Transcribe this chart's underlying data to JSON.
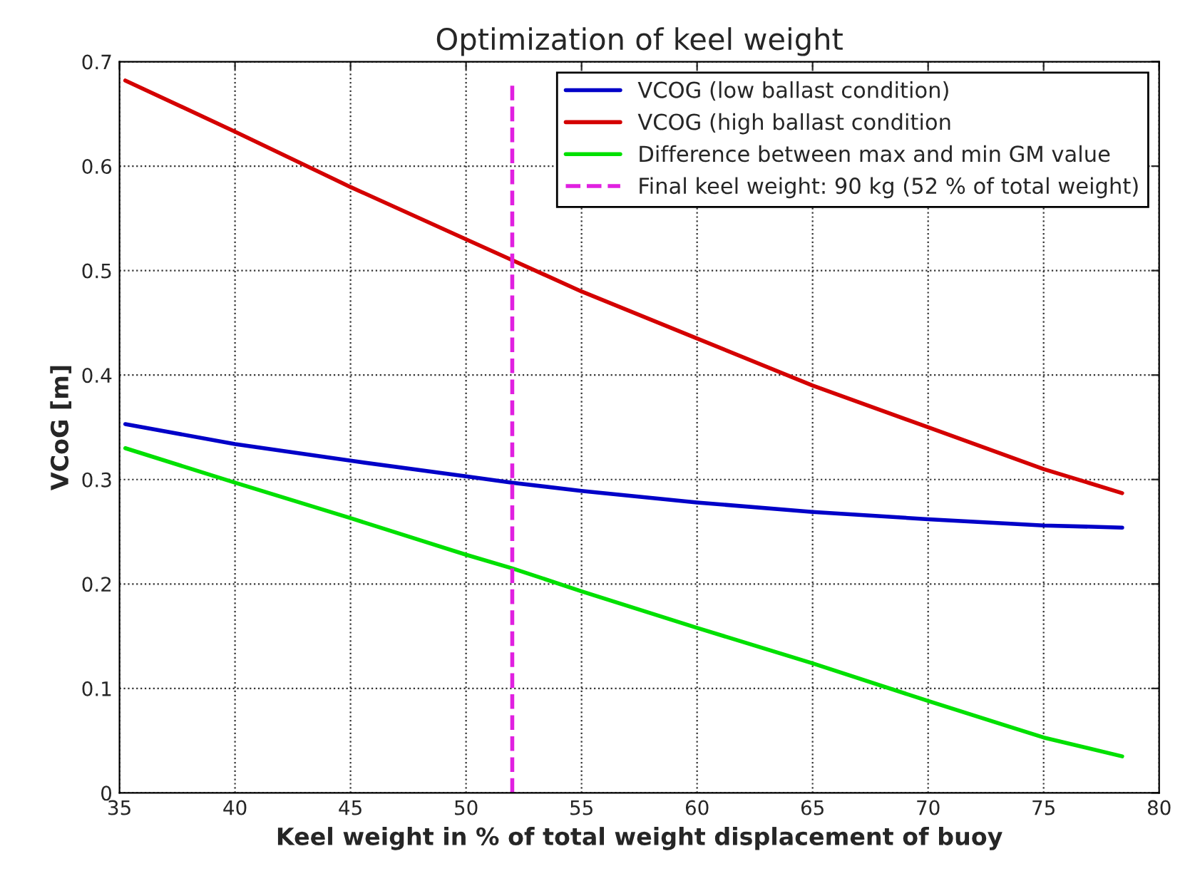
{
  "chart_data": {
    "type": "line",
    "title": "Optimization of keel weight",
    "xlabel": "Keel weight in % of total weight displacement of buoy",
    "ylabel": "VCoG [m]",
    "xlim": [
      35,
      80
    ],
    "xticks": [
      35,
      40,
      45,
      50,
      55,
      60,
      65,
      70,
      75,
      80
    ],
    "ylim": [
      0,
      0.7
    ],
    "yticks": [
      0,
      0.1,
      0.2,
      0.3,
      0.4,
      0.5,
      0.6,
      0.7
    ],
    "grid": true,
    "legend": "top right",
    "marker": "none",
    "series": [
      {
        "name": "VCOG (low ballast condition)",
        "color": "#0000c8",
        "line_style": "solid",
        "x": [
          35.25,
          40,
          45,
          50,
          52,
          55,
          60,
          65,
          70,
          75,
          78.4
        ],
        "values": [
          0.353,
          0.334,
          0.318,
          0.303,
          0.297,
          0.289,
          0.278,
          0.269,
          0.262,
          0.256,
          0.254
        ]
      },
      {
        "name": "VCOG (high ballast condition",
        "color": "#d40000",
        "line_style": "solid",
        "x": [
          35.25,
          40,
          45,
          50,
          52,
          55,
          60,
          65,
          70,
          75,
          78.4
        ],
        "values": [
          0.682,
          0.633,
          0.58,
          0.53,
          0.51,
          0.48,
          0.435,
          0.39,
          0.35,
          0.31,
          0.287
        ]
      },
      {
        "name": "Difference between max and min GM value",
        "color": "#00e000",
        "line_style": "solid",
        "x": [
          35.25,
          40,
          45,
          50,
          52,
          55,
          60,
          65,
          70,
          75,
          78.4
        ],
        "values": [
          0.33,
          0.297,
          0.263,
          0.228,
          0.215,
          0.193,
          0.158,
          0.124,
          0.088,
          0.053,
          0.035
        ]
      },
      {
        "name": "Final keel weight: 90 kg (52 % of total weight)",
        "color": "#e020e0",
        "line_style": "dashed",
        "x": [
          52,
          52
        ],
        "values": [
          0,
          0.678
        ]
      }
    ]
  }
}
